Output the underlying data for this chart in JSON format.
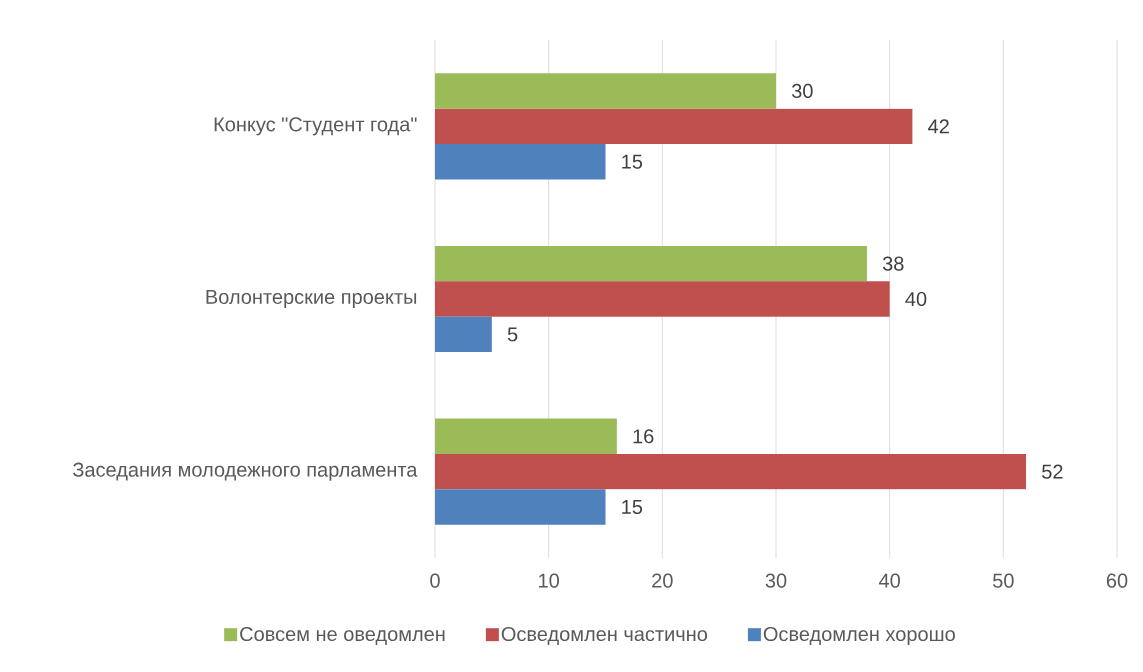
{
  "chart_data": {
    "type": "bar",
    "orientation": "horizontal",
    "categories": [
      "Конкус \"Студент года\"",
      "Волонтерские проекты",
      "Заседания молодежного парламента"
    ],
    "series": [
      {
        "name": "Совсем не оведомлен",
        "color": "#9bbb59",
        "values": [
          30,
          38,
          16
        ]
      },
      {
        "name": "Осведомлен частично",
        "color": "#c0504d",
        "values": [
          42,
          40,
          52
        ]
      },
      {
        "name": "Осведомлен хорошо",
        "color": "#4f81bd",
        "values": [
          15,
          5,
          15
        ]
      }
    ],
    "xlim": [
      0,
      60
    ],
    "xticks": [
      0,
      10,
      20,
      30,
      40,
      50,
      60
    ],
    "grid": "x",
    "legend": "bottom",
    "data_labels": true
  }
}
